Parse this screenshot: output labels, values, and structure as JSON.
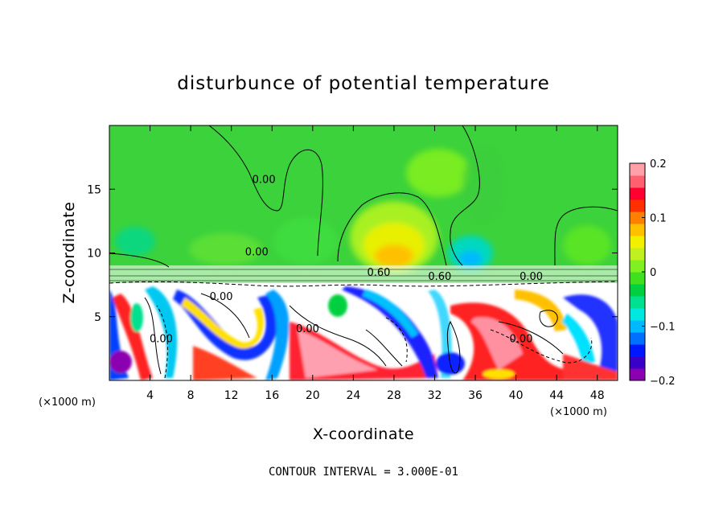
{
  "chart_data": {
    "type": "heatmap",
    "title": "disturbunce of potential temperature",
    "xlabel": "X-coordinate",
    "ylabel": "Z-coordinate",
    "x_unit_left": "(×1000 m)",
    "x_unit_right": "(×1000 m)",
    "xlim": [
      0,
      50
    ],
    "ylim": [
      0,
      20
    ],
    "x_ticks": [
      4,
      8,
      12,
      16,
      20,
      24,
      28,
      32,
      36,
      40,
      44,
      48
    ],
    "x_tick_labels": [
      "4",
      "8",
      "12",
      "16",
      "20",
      "24",
      "28",
      "32",
      "36",
      "40",
      "44",
      "48"
    ],
    "y_ticks": [
      5,
      10,
      15
    ],
    "y_tick_labels": [
      "5",
      "10",
      "15"
    ],
    "colorbar": {
      "range": [
        -0.2,
        0.2
      ],
      "ticks": [
        0.2,
        0.1,
        0,
        -0.1,
        -0.2
      ],
      "tick_labels": [
        "0.2",
        "0.1",
        "0",
        "−0.1",
        "−0.2"
      ],
      "colors": [
        "#8b00b0",
        "#3a00c8",
        "#0018ff",
        "#0070ff",
        "#00b8ff",
        "#00e8e0",
        "#00e090",
        "#00d040",
        "#40e020",
        "#80f020",
        "#c0f020",
        "#f0f000",
        "#ffc000",
        "#ff8000",
        "#ff3000",
        "#ff0030",
        "#ff6070",
        "#ffa0a8"
      ]
    },
    "contour_labels": [
      {
        "x": 15.2,
        "z": 15.5,
        "text": "0.00"
      },
      {
        "x": 14.5,
        "z": 9.8,
        "text": "0.00"
      },
      {
        "x": 26.5,
        "z": 8.2,
        "text": "0.60"
      },
      {
        "x": 32.5,
        "z": 7.9,
        "text": "0.60"
      },
      {
        "x": 41.5,
        "z": 7.9,
        "text": "0.00"
      },
      {
        "x": 11.0,
        "z": 6.3,
        "text": "0.00"
      },
      {
        "x": 5.1,
        "z": 3.0,
        "text": "0.00"
      },
      {
        "x": 19.5,
        "z": 3.8,
        "text": "0.00"
      },
      {
        "x": 40.5,
        "z": 3.0,
        "text": "0.00"
      }
    ],
    "contour_interval_text": "CONTOUR INTERVAL = 3.000E-01",
    "grid": false,
    "legend": "colorbar-right"
  }
}
